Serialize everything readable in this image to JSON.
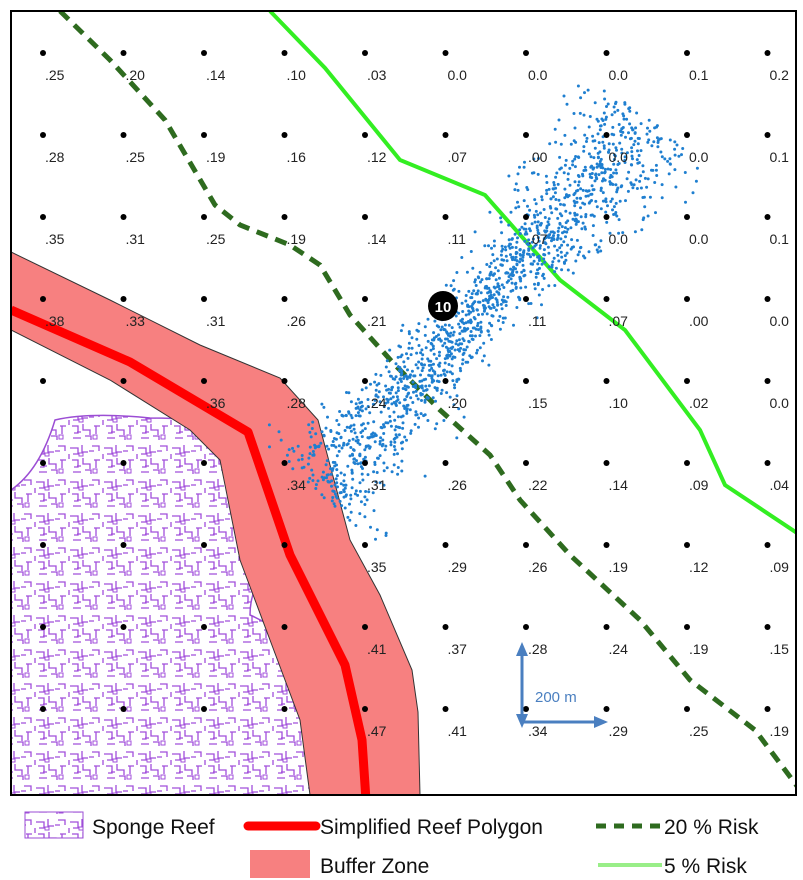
{
  "risk_grid": {
    "rows": [
      [
        ".25",
        ".20",
        ".14",
        ".10",
        ".03",
        "0.0",
        "0.0",
        "0.0",
        "0.1",
        "0.2"
      ],
      [
        ".28",
        ".25",
        ".19",
        ".16",
        ".12",
        ".07",
        ".00",
        "0.0",
        "0.0",
        "0.1"
      ],
      [
        ".35",
        ".31",
        ".25",
        ".19",
        ".14",
        ".11",
        ".07",
        "0.0",
        "0.0",
        "0.1"
      ],
      [
        ".38",
        ".33",
        ".31",
        ".26",
        ".21",
        "",
        ".11",
        ".07",
        ".00",
        "0.0"
      ],
      [
        "",
        "",
        ".36",
        ".28",
        ".24",
        ".20",
        ".15",
        ".10",
        ".02",
        "0.0"
      ],
      [
        "",
        "",
        "",
        ".34",
        ".31",
        ".26",
        ".22",
        ".14",
        ".09",
        ".04"
      ],
      [
        "",
        "",
        "",
        "",
        ".35",
        ".29",
        ".26",
        ".19",
        ".12",
        ".09"
      ],
      [
        "",
        "",
        "",
        "",
        ".41",
        ".37",
        ".28",
        ".24",
        ".19",
        ".15"
      ],
      [
        "",
        "",
        "",
        "",
        ".47",
        ".41",
        ".34",
        ".29",
        ".25",
        ".19"
      ]
    ]
  },
  "site_marker": {
    "label": "10"
  },
  "scale_bar": {
    "label": "200 m"
  },
  "legend": {
    "sponge_reef": "Sponge Reef",
    "simplified_reef_polygon": "Simplified Reef Polygon",
    "risk_20": "20 % Risk",
    "buffer_zone": "Buffer Zone",
    "risk_5": "5 % Risk"
  },
  "colors": {
    "sponge_reef": "#9b4dd4",
    "reef_polygon": "#ff0000",
    "buffer_zone": "#f78080",
    "risk_20": "#2e6b1f",
    "risk_5": "#33ee22",
    "scatter": "#1f7fd0"
  }
}
